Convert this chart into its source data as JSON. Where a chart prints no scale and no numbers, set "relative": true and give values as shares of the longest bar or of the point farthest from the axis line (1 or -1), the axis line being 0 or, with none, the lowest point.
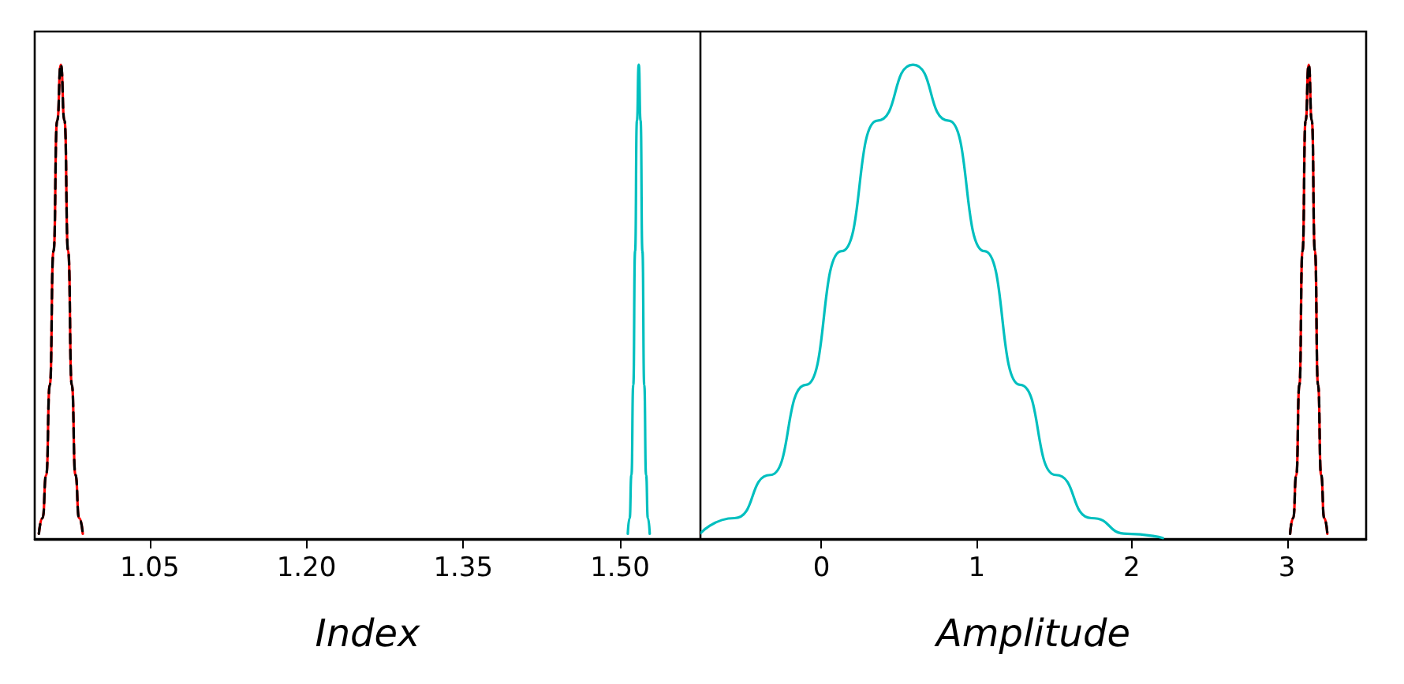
{
  "chart_data": [
    {
      "type": "line",
      "xlabel": "Index",
      "relative": true,
      "xlim": [
        0.94,
        1.577
      ],
      "xticks": [
        1.05,
        {
          "value": 1.2,
          "label": "1.20"
        },
        1.35,
        {
          "value": 1.5,
          "label": "1.50"
        }
      ],
      "tick_labels": "x",
      "marker": "none",
      "series": [
        {
          "color": "#ff0000",
          "x": [
            0.944,
            0.9475,
            0.951,
            0.9545,
            0.958,
            0.9615,
            0.965,
            0.9685,
            0.972,
            0.9755,
            0.979,
            0.9825,
            0.986
          ],
          "values": [
            0.011,
            0.044,
            0.135,
            0.325,
            0.607,
            0.882,
            1,
            0.882,
            0.607,
            0.325,
            0.135,
            0.044,
            0.011
          ]
        },
        {
          "color": "#000000",
          "line_style": "dashed",
          "x": [
            0.944,
            0.9475,
            0.951,
            0.9545,
            0.958,
            0.9615,
            0.965,
            0.9685,
            0.972,
            0.9755,
            0.979,
            0.9825,
            0.986
          ],
          "values": [
            0.011,
            0.044,
            0.135,
            0.325,
            0.607,
            0.882,
            1,
            0.882,
            0.607,
            0.325,
            0.135,
            0.044,
            0.011
          ]
        },
        {
          "color": "#00bfbf",
          "x": [
            1.5075,
            1.50925,
            1.511,
            1.51275,
            1.5145,
            1.51625,
            1.518,
            1.51975,
            1.5215,
            1.52325,
            1.525,
            1.52675,
            1.5285
          ],
          "values": [
            0.011,
            0.044,
            0.135,
            0.325,
            0.607,
            0.882,
            1,
            0.882,
            0.607,
            0.325,
            0.135,
            0.044,
            0.011
          ]
        }
      ]
    },
    {
      "type": "line",
      "xlabel": "Amplitude",
      "relative": true,
      "xlim": [
        -0.78,
        3.51
      ],
      "xticks": [
        0,
        1,
        2,
        3
      ],
      "tick_labels": "x",
      "marker": "none",
      "series": [
        {
          "color": "#00bfbf",
          "x": [
            -0.78,
            -0.56,
            -0.33,
            -0.1,
            0.13,
            0.36,
            0.59,
            0.82,
            1.05,
            1.28,
            1.51,
            1.74,
            1.97,
            2.2
          ],
          "values": [
            0.012,
            0.044,
            0.135,
            0.325,
            0.607,
            0.882,
            1,
            0.882,
            0.607,
            0.325,
            0.135,
            0.044,
            0.011,
            0.002
          ]
        },
        {
          "color": "#ff0000",
          "x": [
            3.02,
            3.04,
            3.06,
            3.08,
            3.1,
            3.12,
            3.14,
            3.16,
            3.18,
            3.2,
            3.22,
            3.24,
            3.26
          ],
          "values": [
            0.011,
            0.044,
            0.135,
            0.325,
            0.607,
            0.882,
            1,
            0.882,
            0.607,
            0.325,
            0.135,
            0.044,
            0.011
          ]
        },
        {
          "color": "#000000",
          "line_style": "dashed",
          "x": [
            3.02,
            3.04,
            3.06,
            3.08,
            3.1,
            3.12,
            3.14,
            3.16,
            3.18,
            3.2,
            3.22,
            3.24,
            3.26
          ],
          "values": [
            0.011,
            0.044,
            0.135,
            0.325,
            0.607,
            0.882,
            1,
            0.882,
            0.607,
            0.325,
            0.135,
            0.044,
            0.011
          ]
        }
      ]
    }
  ]
}
